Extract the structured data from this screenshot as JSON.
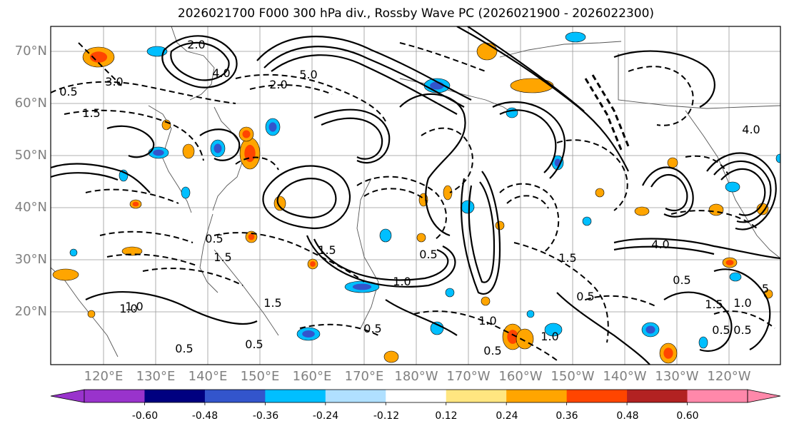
{
  "title": "2026021700 F000 300 hPa div., Rossby Wave PC (2026021900 - 2026022300)",
  "lat_labels": [
    "70°N",
    "60°N",
    "50°N",
    "40°N",
    "30°N",
    "20°N"
  ],
  "lon_labels": [
    "120°E",
    "130°E",
    "140°E",
    "150°E",
    "160°E",
    "170°E",
    "180°W",
    "170°W",
    "160°W",
    "150°W",
    "140°W",
    "130°W",
    "120°W"
  ],
  "contour_labels": [
    "4.0",
    "5.0",
    "2.0",
    "2.0",
    "1.5",
    "3.0",
    "4.0",
    "1.0",
    "5",
    "1.5",
    "0.5",
    "0.5",
    "1.5",
    "1.0",
    "0.5",
    "0.5",
    "1.0",
    "0.5",
    "1.5",
    "0.5",
    "1.5",
    "4.0",
    "0.5",
    "0.5",
    "1.0",
    "0.5",
    "1.0",
    "0.5",
    "1.5",
    "1.0",
    "0.5"
  ],
  "colorbar": {
    "ticks": [
      "-0.60",
      "-0.48",
      "-0.36",
      "-0.24",
      "-0.12",
      "0.12",
      "0.24",
      "0.36",
      "0.48",
      "0.60"
    ],
    "colors": [
      "#9933cc",
      "#000080",
      "#3355cc",
      "#00bfff",
      "#b0e0ff",
      "#ffffff",
      "#ffe680",
      "#ffa500",
      "#ff4500",
      "#b22222",
      "#ff88aa"
    ],
    "extend": "both"
  },
  "colors": {
    "positive_fill": "#ffa500",
    "strong_positive_fill": "#ff4500",
    "negative_fill": "#00bfff",
    "strong_negative_fill": "#3355cc",
    "contour": "#000000",
    "grid": "#888888",
    "label": "#808080"
  }
}
